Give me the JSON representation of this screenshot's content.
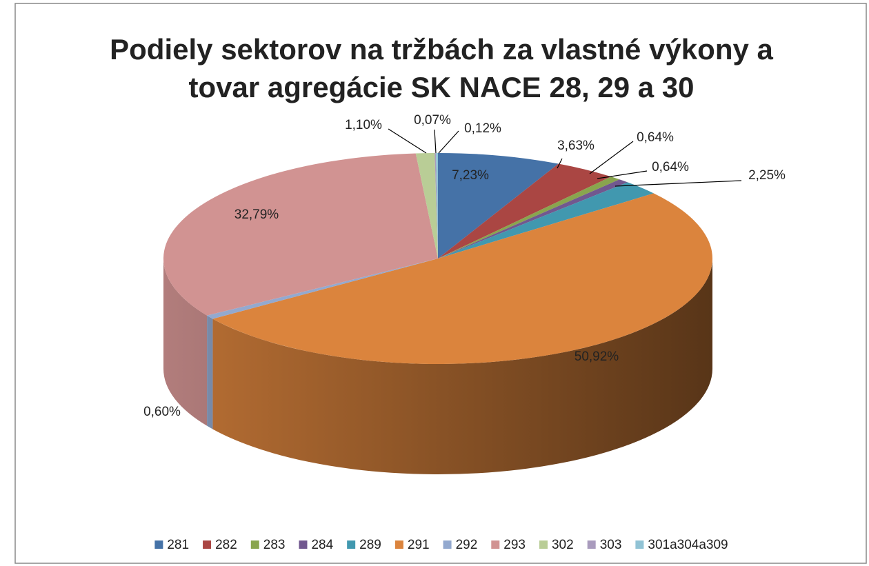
{
  "chart_data": {
    "type": "pie",
    "title": "Podiely sektorov na tržbách za vlastné výkony a tovar agregácie SK NACE 28, 29 a 30",
    "title_lines": [
      "Podiely sektorov na tržbách za vlastné výkony a",
      "tovar agregácie SK NACE 28, 29 a 30"
    ],
    "categories": [
      "281",
      "282",
      "283",
      "284",
      "289",
      "291",
      "292",
      "293",
      "302",
      "303",
      "301a304a309"
    ],
    "values": [
      7.23,
      3.63,
      0.64,
      0.64,
      2.25,
      50.92,
      0.6,
      32.79,
      1.1,
      0.07,
      0.12
    ],
    "value_labels": [
      "7,23%",
      "3,63%",
      "0,64%",
      "0,64%",
      "2,25%",
      "50,92%",
      "0,60%",
      "32,79%",
      "1,10%",
      "0,07%",
      "0,12%"
    ],
    "colors": [
      "#4572a7",
      "#aa4643",
      "#89a54e",
      "#71588f",
      "#4198af",
      "#db843d",
      "#93a9cf",
      "#d19392",
      "#b9cd96",
      "#a99bbd",
      "#91c3d5"
    ],
    "legend": "bottom"
  }
}
